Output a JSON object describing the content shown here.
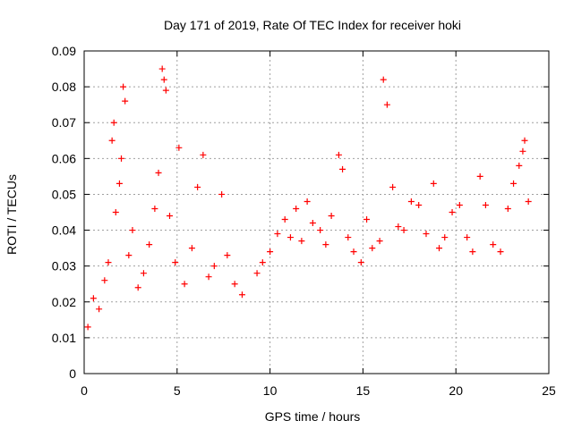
{
  "chart_data": {
    "type": "scatter",
    "title": "Day 171 of 2019, Rate Of TEC Index for receiver hoki",
    "xlabel": "GPS time / hours",
    "ylabel": "ROTI / TECUs",
    "xlim": [
      0,
      25
    ],
    "ylim": [
      0,
      0.09
    ],
    "xticks": [
      0,
      5,
      10,
      15,
      20,
      25
    ],
    "yticks": [
      0,
      0.01,
      0.02,
      0.03,
      0.04,
      0.05,
      0.06,
      0.07,
      0.08,
      0.09
    ],
    "grid": true,
    "marker": "+",
    "series": [
      {
        "name": "ROTI",
        "color": "#ff0000",
        "x": [
          0.2,
          0.5,
          0.8,
          1.1,
          1.3,
          1.5,
          1.6,
          1.7,
          1.9,
          2.0,
          2.1,
          2.2,
          2.4,
          2.6,
          2.9,
          3.2,
          3.5,
          3.8,
          4.0,
          4.2,
          4.3,
          4.4,
          4.6,
          4.9,
          5.1,
          5.4,
          5.8,
          6.1,
          6.4,
          6.7,
          7.0,
          7.4,
          7.7,
          8.1,
          8.5,
          9.3,
          9.6,
          10.0,
          10.4,
          10.8,
          11.1,
          11.4,
          11.7,
          12.0,
          12.3,
          12.7,
          13.0,
          13.3,
          13.7,
          13.9,
          14.2,
          14.5,
          14.9,
          15.2,
          15.5,
          15.9,
          16.1,
          16.3,
          16.6,
          16.9,
          17.2,
          17.6,
          18.0,
          18.4,
          18.8,
          19.1,
          19.4,
          19.8,
          20.2,
          20.6,
          20.9,
          21.3,
          21.6,
          22.0,
          22.4,
          22.8,
          23.1,
          23.4,
          23.6,
          23.7,
          23.9
        ],
        "y": [
          0.013,
          0.021,
          0.018,
          0.026,
          0.031,
          0.065,
          0.07,
          0.045,
          0.053,
          0.06,
          0.08,
          0.076,
          0.033,
          0.04,
          0.024,
          0.028,
          0.036,
          0.046,
          0.056,
          0.085,
          0.082,
          0.079,
          0.044,
          0.031,
          0.063,
          0.025,
          0.035,
          0.052,
          0.061,
          0.027,
          0.03,
          0.05,
          0.033,
          0.025,
          0.022,
          0.028,
          0.031,
          0.034,
          0.039,
          0.043,
          0.038,
          0.046,
          0.037,
          0.048,
          0.042,
          0.04,
          0.036,
          0.044,
          0.061,
          0.057,
          0.038,
          0.034,
          0.031,
          0.043,
          0.035,
          0.037,
          0.082,
          0.075,
          0.052,
          0.041,
          0.04,
          0.048,
          0.047,
          0.039,
          0.053,
          0.035,
          0.038,
          0.045,
          0.047,
          0.038,
          0.034,
          0.055,
          0.047,
          0.036,
          0.034,
          0.046,
          0.053,
          0.058,
          0.062,
          0.065,
          0.048
        ]
      }
    ]
  }
}
